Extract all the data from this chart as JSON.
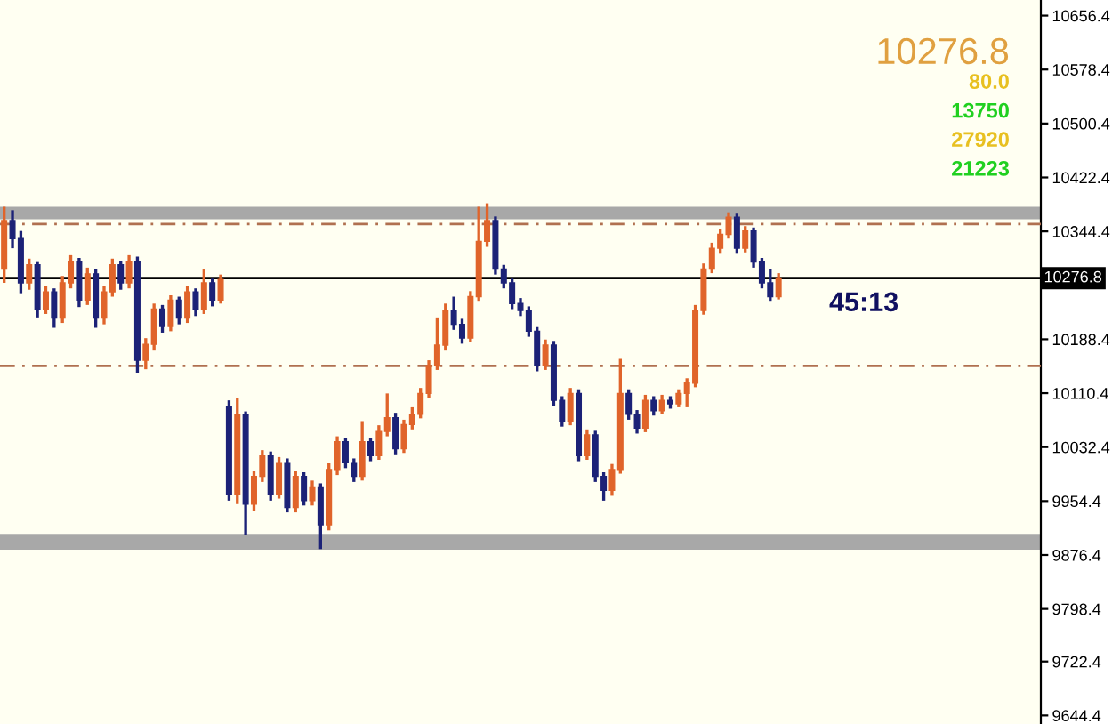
{
  "chart_data": {
    "type": "candlestick",
    "categories": [
      null,
      null,
      null,
      null,
      null,
      null,
      null,
      null,
      null,
      null,
      null,
      null,
      null,
      null,
      null,
      null,
      null,
      null,
      null,
      null,
      null,
      null,
      null,
      null,
      null,
      null,
      null,
      null,
      null,
      null,
      null,
      null,
      null,
      null,
      null,
      null,
      null,
      null,
      null,
      null,
      null,
      null,
      null,
      null,
      null,
      null,
      null,
      null,
      null,
      null,
      null,
      null,
      null,
      null,
      null,
      null,
      null,
      null,
      null,
      null,
      null,
      null,
      null,
      null,
      null,
      null,
      null,
      null,
      null,
      null,
      null,
      null,
      null,
      null,
      null,
      null,
      null,
      null,
      null,
      null,
      null,
      null,
      null,
      null,
      null,
      null,
      null,
      null,
      null,
      null,
      null,
      null,
      null,
      null,
      null,
      null,
      null,
      null,
      null,
      null,
      null,
      null,
      null,
      null,
      null,
      null,
      null,
      null,
      null,
      null,
      null,
      null,
      null,
      null,
      null,
      null,
      null,
      null,
      null,
      null,
      null,
      null,
      null,
      null,
      null
    ],
    "ohlc": [
      [
        10290,
        10380,
        10270,
        10360
      ],
      [
        10360,
        10375,
        10320,
        10334
      ],
      [
        10334,
        10345,
        10255,
        10270
      ],
      [
        10270,
        10305,
        10260,
        10296
      ],
      [
        10296,
        10300,
        10220,
        10232
      ],
      [
        10232,
        10265,
        10225,
        10257
      ],
      [
        10257,
        10262,
        10205,
        10219
      ],
      [
        10219,
        10280,
        10212,
        10270
      ],
      [
        10270,
        10310,
        10262,
        10301
      ],
      [
        10301,
        10306,
        10235,
        10245
      ],
      [
        10245,
        10292,
        10238,
        10283
      ],
      [
        10283,
        10290,
        10205,
        10219
      ],
      [
        10219,
        10265,
        10210,
        10257
      ],
      [
        10257,
        10305,
        10250,
        10296
      ],
      [
        10296,
        10302,
        10260,
        10270
      ],
      [
        10270,
        10310,
        10262,
        10301
      ],
      [
        10301,
        10308,
        10140,
        10158
      ],
      [
        10158,
        10190,
        10145,
        10181
      ],
      [
        10181,
        10240,
        10172,
        10232
      ],
      [
        10232,
        10238,
        10198,
        10207
      ],
      [
        10207,
        10252,
        10200,
        10245
      ],
      [
        10245,
        10250,
        10210,
        10219
      ],
      [
        10219,
        10266,
        10212,
        10257
      ],
      [
        10257,
        10262,
        10222,
        10232
      ],
      [
        10232,
        10290,
        10225,
        10270
      ],
      [
        10270,
        10276,
        10236,
        10245
      ],
      [
        10245,
        10282,
        10240,
        10275
      ],
      [
        10091,
        10100,
        9955,
        9964
      ],
      [
        9964,
        10104,
        9950,
        10079
      ],
      [
        10079,
        10084,
        9905,
        9950
      ],
      [
        9950,
        9998,
        9940,
        9990
      ],
      [
        9990,
        10028,
        9982,
        10020
      ],
      [
        10020,
        10026,
        9955,
        9964
      ],
      [
        9964,
        10018,
        9958,
        10010
      ],
      [
        10010,
        10016,
        9938,
        9945
      ],
      [
        9945,
        9998,
        9938,
        9990
      ],
      [
        9990,
        9996,
        9948,
        9955
      ],
      [
        9955,
        9984,
        9948,
        9975
      ],
      [
        9975,
        9980,
        9885,
        9920
      ],
      [
        9920,
        10010,
        9912,
        10000
      ],
      [
        10000,
        10048,
        9992,
        10040
      ],
      [
        10040,
        10046,
        10002,
        10010
      ],
      [
        10010,
        10016,
        9982,
        9990
      ],
      [
        9990,
        10070,
        9984,
        10040
      ],
      [
        10040,
        10046,
        10012,
        10020
      ],
      [
        10020,
        10064,
        10014,
        10055
      ],
      [
        10055,
        10110,
        10048,
        10075
      ],
      [
        10075,
        10082,
        10022,
        10030
      ],
      [
        10030,
        10072,
        10024,
        10065
      ],
      [
        10065,
        10090,
        10058,
        10080
      ],
      [
        10080,
        10118,
        10074,
        10110
      ],
      [
        10110,
        10158,
        10104,
        10150
      ],
      [
        10150,
        10220,
        10144,
        10180
      ],
      [
        10180,
        10240,
        10172,
        10230
      ],
      [
        10230,
        10250,
        10202,
        10210
      ],
      [
        10210,
        10218,
        10182,
        10190
      ],
      [
        10190,
        10258,
        10184,
        10250
      ],
      [
        10250,
        10380,
        10244,
        10330
      ],
      [
        10330,
        10385,
        10322,
        10360
      ],
      [
        10360,
        10366,
        10282,
        10290
      ],
      [
        10290,
        10296,
        10262,
        10270
      ],
      [
        10270,
        10276,
        10232,
        10240
      ],
      [
        10240,
        10248,
        10222,
        10230
      ],
      [
        10230,
        10236,
        10192,
        10200
      ],
      [
        10200,
        10206,
        10142,
        10150
      ],
      [
        10150,
        10188,
        10144,
        10180
      ],
      [
        10180,
        10186,
        10092,
        10100
      ],
      [
        10100,
        10106,
        10062,
        10070
      ],
      [
        10070,
        10118,
        10064,
        10110
      ],
      [
        10110,
        10116,
        10012,
        10020
      ],
      [
        10020,
        10058,
        10014,
        10050
      ],
      [
        10050,
        10056,
        9982,
        9990
      ],
      [
        9990,
        9996,
        9955,
        9970
      ],
      [
        9970,
        10008,
        9962,
        10000
      ],
      [
        10000,
        10160,
        9994,
        10110
      ],
      [
        10110,
        10116,
        10072,
        10080
      ],
      [
        10080,
        10086,
        10052,
        10060
      ],
      [
        10060,
        10108,
        10054,
        10100
      ],
      [
        10100,
        10106,
        10078,
        10085
      ],
      [
        10085,
        10108,
        10080,
        10100
      ],
      [
        10100,
        10106,
        10088,
        10095
      ],
      [
        10095,
        10116,
        10090,
        10110
      ],
      [
        10110,
        10132,
        10090,
        10125
      ],
      [
        10125,
        10238,
        10119,
        10230
      ],
      [
        10230,
        10298,
        10224,
        10290
      ],
      [
        10290,
        10328,
        10284,
        10320
      ],
      [
        10320,
        10348,
        10312,
        10340
      ],
      [
        10340,
        10372,
        10334,
        10365
      ],
      [
        10365,
        10370,
        10312,
        10320
      ],
      [
        10320,
        10352,
        10314,
        10345
      ],
      [
        10345,
        10350,
        10292,
        10300
      ],
      [
        10300,
        10306,
        10262,
        10270
      ],
      [
        10270,
        10290,
        10244,
        10250
      ],
      [
        10250,
        10284,
        10246,
        10277
      ],
      null,
      null,
      null,
      null,
      null,
      null,
      null,
      null,
      null,
      null,
      null,
      null,
      null,
      null,
      null,
      null,
      null,
      null,
      null,
      null,
      null,
      null,
      null,
      null,
      null,
      null,
      null,
      null,
      null,
      null,
      null
    ],
    "ylim": [
      9632,
      10679
    ],
    "yticks": [
      9644.4,
      9722.4,
      9798.4,
      9876.4,
      9954.4,
      10032.4,
      10110.4,
      10188.4,
      10344.4,
      10422.4,
      10500.4,
      10578.4,
      10656.4
    ],
    "ref_lines": [
      {
        "axis": "y",
        "value": 10276.8,
        "label": "10276.8",
        "color": "#000000",
        "line_style": "solid"
      },
      {
        "axis": "y",
        "value": 10355,
        "color": "#b07050",
        "line_style": "dashed"
      },
      {
        "axis": "y",
        "value": 10150,
        "color": "#b07050",
        "line_style": "dashed"
      }
    ],
    "bands": [
      {
        "axis": "y",
        "from": 10362,
        "to": 10380,
        "color": "#a8a8a8"
      },
      {
        "axis": "y",
        "from": 9884,
        "to": 9907,
        "color": "#a8a8a8"
      }
    ],
    "annotations": [
      "10276.8",
      "80.0",
      "13750",
      "27920",
      "21223",
      "45:13"
    ],
    "grid": false,
    "legend": false
  }
}
